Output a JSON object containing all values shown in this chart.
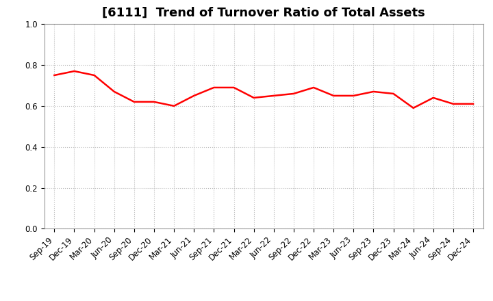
{
  "title": "[6111]  Trend of Turnover Ratio of Total Assets",
  "labels": [
    "Sep-19",
    "Dec-19",
    "Mar-20",
    "Jun-20",
    "Sep-20",
    "Dec-20",
    "Mar-21",
    "Jun-21",
    "Sep-21",
    "Dec-21",
    "Mar-22",
    "Jun-22",
    "Sep-22",
    "Dec-22",
    "Mar-23",
    "Jun-23",
    "Sep-23",
    "Dec-23",
    "Mar-24",
    "Jun-24",
    "Sep-24",
    "Dec-24"
  ],
  "values": [
    0.75,
    0.77,
    0.75,
    0.67,
    0.62,
    0.62,
    0.6,
    0.65,
    0.69,
    0.69,
    0.64,
    0.65,
    0.66,
    0.69,
    0.65,
    0.65,
    0.67,
    0.66,
    0.59,
    0.64,
    0.61,
    0.61
  ],
  "line_color": "#FF0000",
  "line_width": 1.8,
  "ylim": [
    0.0,
    1.0
  ],
  "yticks": [
    0.0,
    0.2,
    0.4,
    0.6,
    0.8,
    1.0
  ],
  "background_color": "#ffffff",
  "grid_color": "#bbbbbb",
  "title_fontsize": 13,
  "tick_fontsize": 8.5
}
